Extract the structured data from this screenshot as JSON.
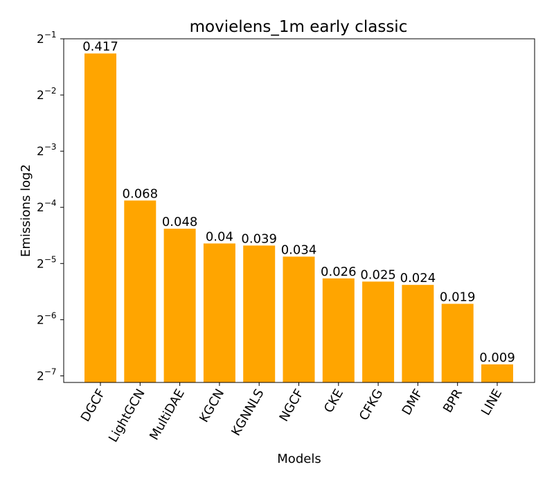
{
  "chart_data": {
    "type": "bar",
    "title": "movielens_1m early classic",
    "xlabel": "Models",
    "ylabel": "Emissions log2",
    "yscale": "log2",
    "ylim": [
      0.0072,
      0.5
    ],
    "yticks": [
      {
        "value": 0.5,
        "base": "2",
        "exp": "−1"
      },
      {
        "value": 0.25,
        "base": "2",
        "exp": "−2"
      },
      {
        "value": 0.125,
        "base": "2",
        "exp": "−3"
      },
      {
        "value": 0.0625,
        "base": "2",
        "exp": "−4"
      },
      {
        "value": 0.03125,
        "base": "2",
        "exp": "−5"
      },
      {
        "value": 0.015625,
        "base": "2",
        "exp": "−6"
      },
      {
        "value": 0.0078125,
        "base": "2",
        "exp": "−7"
      }
    ],
    "categories": [
      "DGCF",
      "LightGCN",
      "MultiDAE",
      "KGCN",
      "KGNNLS",
      "NGCF",
      "CKE",
      "CFKG",
      "DMF",
      "BPR",
      "LINE"
    ],
    "values": [
      0.417,
      0.068,
      0.048,
      0.04,
      0.039,
      0.034,
      0.026,
      0.025,
      0.024,
      0.019,
      0.009
    ],
    "labels": [
      "0.417",
      "0.068",
      "0.048",
      "0.04",
      "0.039",
      "0.034",
      "0.026",
      "0.025",
      "0.024",
      "0.019",
      "0.009"
    ],
    "bar_color": "#ffa500",
    "grid": false,
    "legend": "none"
  }
}
